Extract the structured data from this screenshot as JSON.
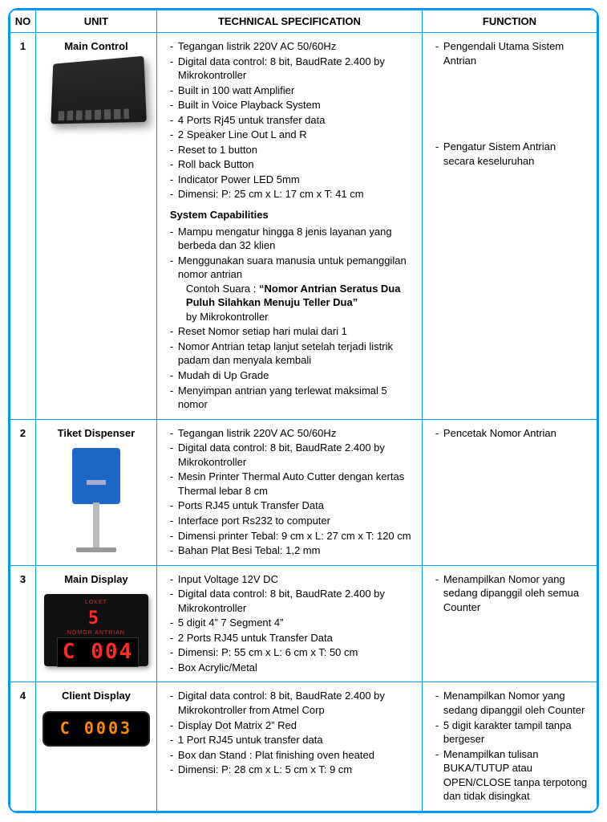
{
  "colors": {
    "border": "#0099ff",
    "text": "#000000",
    "bg": "#ffffff"
  },
  "headers": {
    "no": "NO",
    "unit": "UNIT",
    "spec": "TECHNICAL SPECIFICATION",
    "func": "FUNCTION"
  },
  "rows": [
    {
      "no": "1",
      "unit": "Main Control",
      "device": {
        "type": "main-control-box"
      },
      "specs": [
        "Tegangan listrik 220V AC 50/60Hz",
        "Digital data control: 8 bit, BaudRate 2.400 by Mikrokontroller",
        "Built in 100 watt Amplifier",
        "Built in Voice Playback System",
        "4 Ports Rj45 untuk transfer data",
        "2 Speaker Line Out L and R",
        "Reset to 1 button",
        "Roll back Button",
        "Indicator Power LED 5mm",
        "Dimensi: P: 25 cm x L: 17 cm x T: 41 cm"
      ],
      "caps_heading": "System Capabilities",
      "caps": [
        "Mampu mengatur hingga 8 jenis layanan yang berbeda dan 32 klien",
        "Menggunakan suara manusia untuk pemanggilan nomor antrian<br><span class=\"sub\">Contoh Suara : <b>“Nomor Antrian Seratus Dua Puluh Silahkan Menuju Teller Dua”</b></span><span class=\"sub\">by Mikrokontroller</span>",
        "Reset Nomor setiap hari mulai dari 1",
        "Nomor Antrian tetap lanjut setelah terjadi listrik padam dan menyala kembali",
        "Mudah di Up Grade",
        "Menyimpan antrian yang terlewat maksimal 5 nomor"
      ],
      "funcs": [
        "Pengendali Utama Sistem Antrian"
      ],
      "funcs2": [
        "Pengatur Sistem Antrian secara keseluruhan"
      ]
    },
    {
      "no": "2",
      "unit": "Tiket Dispenser",
      "device": {
        "type": "kiosk"
      },
      "specs": [
        "Tegangan listrik 220V AC 50/60Hz",
        "Digital data control: 8 bit, BaudRate 2.400 by Mikrokontroller",
        "Mesin Printer Thermal Auto Cutter dengan kertas Thermal lebar 8 cm",
        "Ports RJ45 untuk Transfer Data",
        "Interface port Rs232 to computer",
        "Dimensi printer Tebal: 9 cm x L: 27 cm x T: 120 cm",
        "Bahan Plat Besi Tebal: 1,2 mm"
      ],
      "funcs": [
        "Pencetak Nomor Antrian"
      ]
    },
    {
      "no": "3",
      "unit": "Main Display",
      "device": {
        "type": "main-display",
        "loket_label": "LOKET",
        "loket_val": "5",
        "antrian_label": "NOMOR ANTRIAN",
        "antrian_val": "C 004"
      },
      "specs": [
        "Input Voltage 12V DC",
        "Digital data control: 8 bit, BaudRate 2.400 by Mikrokontroller",
        "5 digit 4” 7 Segment 4”",
        "2 Ports RJ45 untuk Transfer Data",
        "Dimensi: P: 55 cm x L: 6 cm x T: 50 cm",
        "Box Acrylic/Metal"
      ],
      "funcs": [
        "Menampilkan Nomor yang sedang dipanggil oleh semua Counter"
      ]
    },
    {
      "no": "4",
      "unit": "Client Display",
      "device": {
        "type": "client-display",
        "value": "C 0003"
      },
      "specs": [
        "Digital data control: 8 bit, BaudRate 2.400 by Mikrokontroller from Atmel Corp",
        "Display Dot Matrix 2” Red",
        "1 Port RJ45 untuk transfer data",
        "Box dan Stand : Plat finishing oven heated",
        "Dimensi: P: 28 cm x L: 5 cm x T: 9 cm"
      ],
      "funcs": [
        "Menampilkan Nomor yang sedang dipanggil oleh Counter",
        "5 digit karakter tampil tanpa bergeser",
        "Menampilkan tulisan BUKA/TUTUP atau OPEN/CLOSE tanpa terpotong dan tidak disingkat"
      ]
    }
  ]
}
